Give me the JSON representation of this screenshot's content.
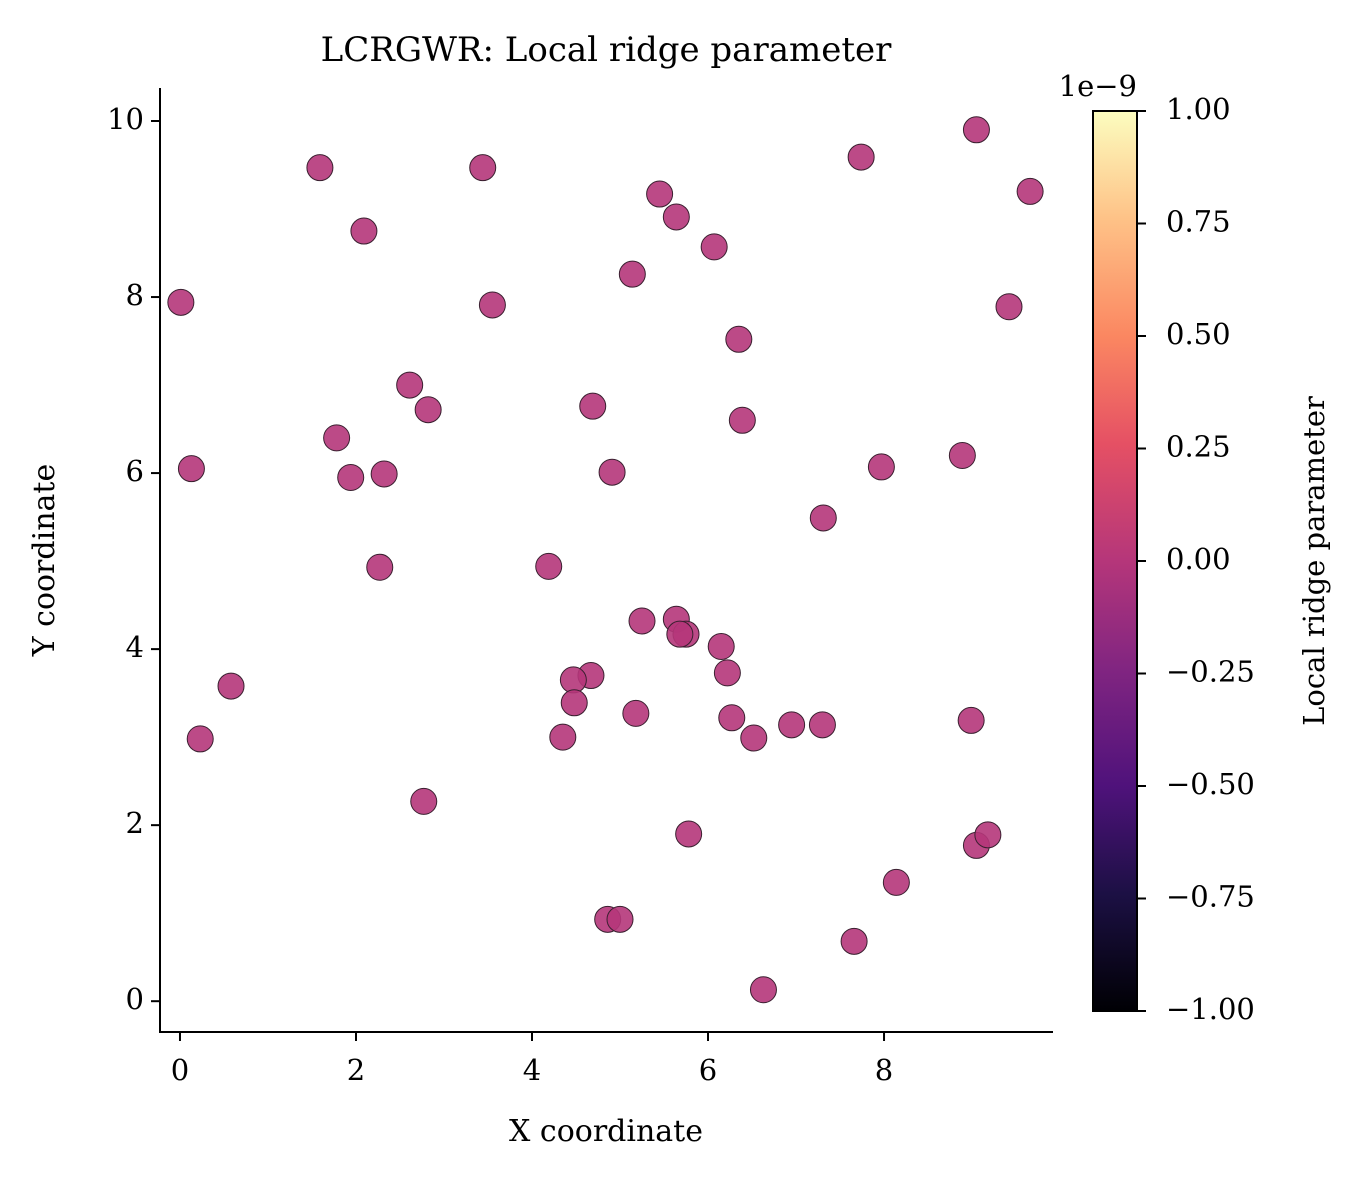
{
  "chart_data": {
    "type": "scatter",
    "title": "LCRGWR: Local ridge parameter",
    "x_label": "X coordinate",
    "y_label": "Y coordinate",
    "color": "#b5367a",
    "x": [
      0.01,
      0.13,
      0.58,
      0.23,
      1.59,
      2.09,
      3.44,
      3.55,
      2.61,
      2.82,
      1.78,
      1.94,
      2.32,
      2.27,
      2.77,
      4.19,
      4.69,
      4.91,
      5.14,
      5.45,
      5.64,
      6.07,
      6.35,
      6.39,
      7.74,
      9.05,
      9.66,
      9.42,
      8.89,
      7.97,
      7.31,
      5.25,
      5.64,
      5.75,
      5.68,
      6.15,
      6.22,
      4.67,
      4.47,
      4.48,
      4.35,
      5.18,
      6.27,
      6.52,
      6.95,
      7.3,
      8.99,
      5.78,
      9.05,
      9.18,
      8.14,
      4.86,
      5.0,
      7.66,
      6.63
    ],
    "values": [
      7.94,
      6.05,
      3.58,
      2.98,
      9.47,
      8.75,
      9.47,
      7.91,
      7.0,
      6.72,
      6.4,
      5.95,
      5.99,
      4.93,
      2.27,
      4.94,
      6.76,
      6.01,
      8.26,
      9.17,
      8.91,
      8.57,
      7.52,
      6.6,
      9.59,
      9.9,
      9.2,
      7.89,
      6.2,
      6.07,
      5.49,
      4.32,
      4.34,
      4.17,
      4.17,
      4.03,
      3.73,
      3.7,
      3.65,
      3.39,
      3.0,
      3.27,
      3.22,
      2.99,
      3.14,
      3.14,
      3.19,
      1.9,
      1.77,
      1.89,
      1.35,
      0.93,
      0.93,
      0.68,
      0.13
    ],
    "xlim": [
      -0.227,
      9.92
    ],
    "ylim": [
      -0.35,
      10.375
    ],
    "xticks": [
      0,
      2,
      4,
      6,
      8
    ],
    "yticks": [
      0,
      2,
      4,
      6,
      8,
      10
    ],
    "colorbar": {
      "label": "Local ridge parameter",
      "offset_text": "1e−9",
      "lim": [
        -1e-09,
        1e-09
      ],
      "ticks": [
        {
          "value": -1e-09,
          "label": "−1.00"
        },
        {
          "value": -7.5e-10,
          "label": "−0.75"
        },
        {
          "value": -5e-10,
          "label": "−0.50"
        },
        {
          "value": -2.5e-10,
          "label": "−0.25"
        },
        {
          "value": 0,
          "label": "0.00"
        },
        {
          "value": 2.5e-10,
          "label": "0.25"
        },
        {
          "value": 5e-10,
          "label": "0.50"
        },
        {
          "value": 7.5e-10,
          "label": "0.75"
        },
        {
          "value": 1e-09,
          "label": "1.00"
        }
      ]
    }
  }
}
